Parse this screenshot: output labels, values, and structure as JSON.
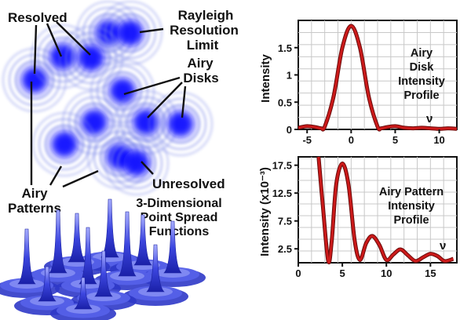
{
  "diagram": {
    "labels": {
      "resolved": "Resolved",
      "rayleigh": [
        "Rayleigh",
        "Resolution",
        "Limit"
      ],
      "airy_disks": [
        "Airy",
        "Disks"
      ],
      "airy_patterns": [
        "Airy",
        "Patterns"
      ],
      "unresolved": "Unresolved",
      "psf": [
        "3-Dimensional",
        "Point Spread",
        "Functions"
      ]
    },
    "colors": {
      "disk_core": "#1010ff",
      "ring": "#7a86e8",
      "curve": "#cc1a1a",
      "psf_base": "#3a44d8"
    }
  },
  "chart_data": [
    {
      "type": "line",
      "title": [
        "Airy",
        "Disk",
        "Intensity",
        "Profile"
      ],
      "xlabel": "",
      "ylabel": "Intensity",
      "x_marker": "ν",
      "xlim": [
        -6,
        12
      ],
      "ylim": [
        0,
        2
      ],
      "xticks": [
        "-5",
        "0",
        "5",
        "10"
      ],
      "xtick_values": [
        -5,
        0,
        5,
        10
      ],
      "yticks": [
        "0",
        "0.5",
        "1",
        "1.5"
      ],
      "ytick_values": [
        0,
        0.5,
        1,
        1.5
      ],
      "grid": true,
      "series": [
        {
          "x": [
            -6,
            -5,
            -4,
            -3.4,
            -3,
            -2,
            -1,
            0,
            1,
            2,
            3,
            3.4,
            4,
            5,
            6,
            7,
            8,
            9,
            10,
            11,
            12
          ],
          "y": [
            0.03,
            0.06,
            0.04,
            0.02,
            0.05,
            0.6,
            1.5,
            1.9,
            1.5,
            0.6,
            0.05,
            0.02,
            0.04,
            0.06,
            0.03,
            0.02,
            0.03,
            0.02,
            0.01,
            0.02,
            0.01
          ]
        }
      ]
    },
    {
      "type": "line",
      "title": [
        "Airy Pattern",
        "Intensity",
        "Profile"
      ],
      "xlabel": "",
      "ylabel": "Intensity (x10⁻³)",
      "x_marker": "ν",
      "xlim": [
        0,
        18
      ],
      "ylim": [
        0,
        19
      ],
      "xticks": [
        "0",
        "5",
        "10",
        "15"
      ],
      "xtick_values": [
        0,
        5,
        10,
        15
      ],
      "yticks": [
        "2.5",
        "7.5",
        "12.5",
        "17.5"
      ],
      "ytick_values": [
        2.5,
        7.5,
        12.5,
        17.5
      ],
      "grid": true,
      "series": [
        {
          "x": [
            2.3,
            2.8,
            3.4,
            3.8,
            4.3,
            5.0,
            5.7,
            6.4,
            7.0,
            7.7,
            8.4,
            9.2,
            10.0,
            10.8,
            11.6,
            12.4,
            13.3,
            14.2,
            15.0,
            15.8,
            16.6,
            17.6
          ],
          "y": [
            19,
            10,
            0.3,
            4,
            14,
            17.8,
            14,
            4,
            0.5,
            3.5,
            4.8,
            3.2,
            0.5,
            1.5,
            2.4,
            1.4,
            0.3,
            1.0,
            1.6,
            1.2,
            0.3,
            0.7
          ]
        }
      ]
    }
  ]
}
